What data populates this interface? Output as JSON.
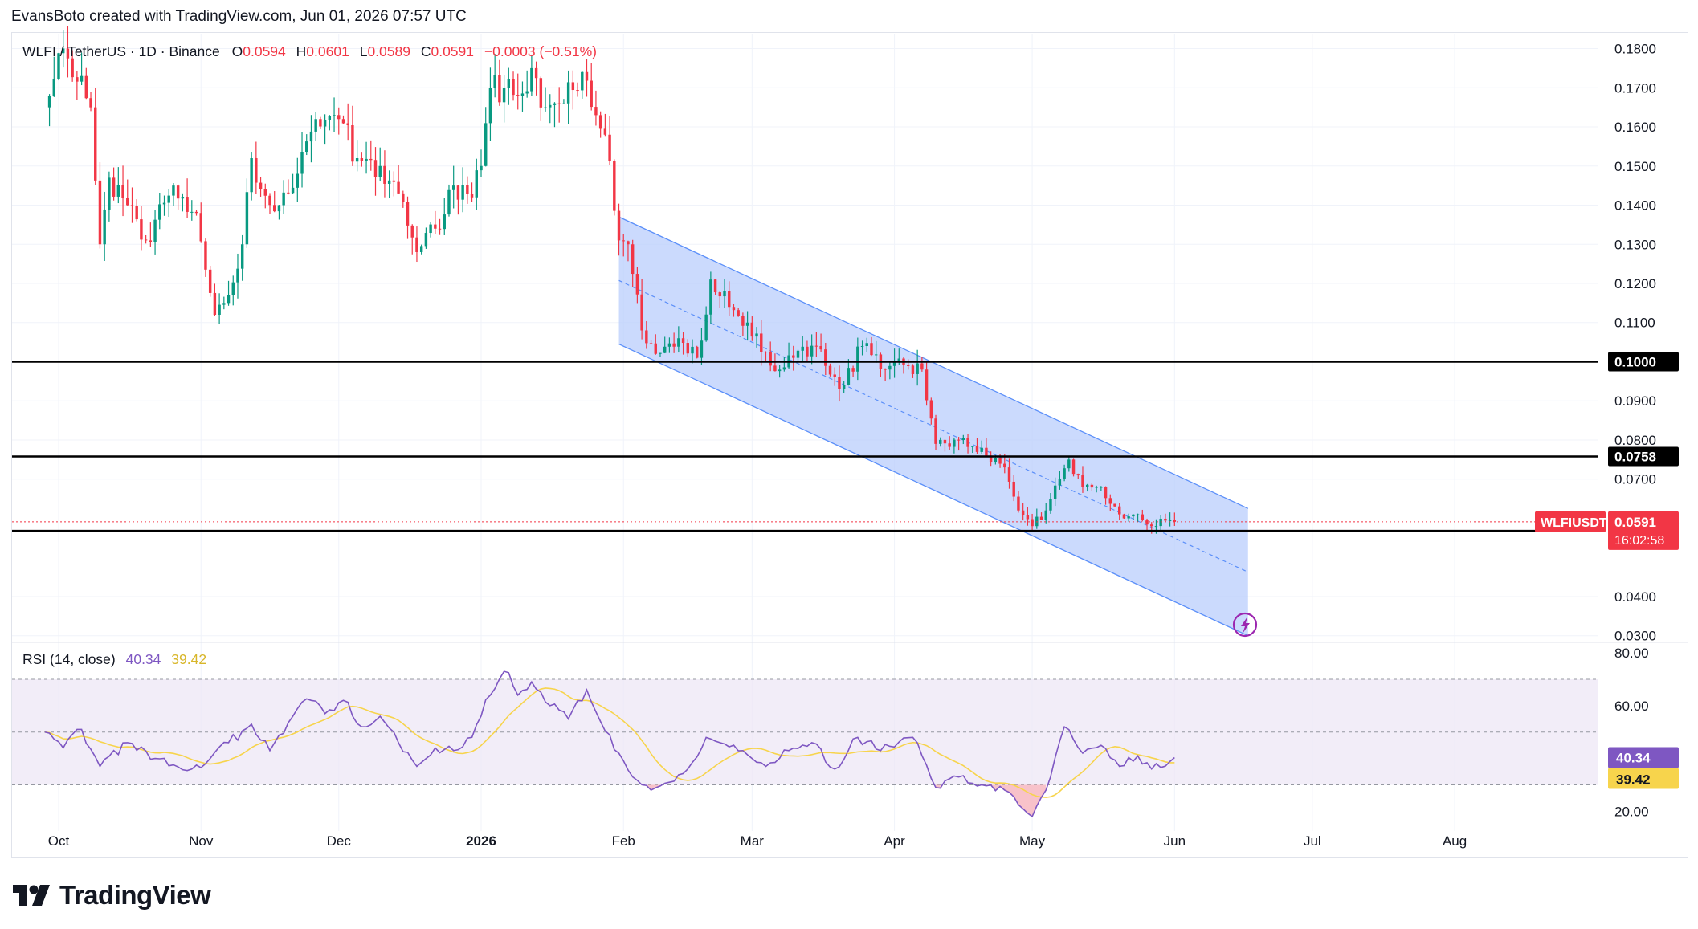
{
  "credit": "EvansBoto created with TradingView.com, Jun 01, 2026 07:57 UTC",
  "brand": "TradingView",
  "colors": {
    "up": "#089981",
    "down": "#f23645",
    "channel_fill": "#b9cdfc",
    "channel_line": "#5b8ff9",
    "rsi_line": "#7e57c2",
    "rsi_ma": "#f7d44c",
    "rsi_band": "#ede7f6",
    "level": "#000000"
  },
  "chart_data": [
    {
      "type": "candlestick",
      "legend": {
        "symbol": "WLFI / TetherUS · 1D · Binance",
        "o_label": "O",
        "o": "0.0594",
        "h_label": "H",
        "h": "0.0601",
        "l_label": "L",
        "l": "0.0589",
        "c_label": "C",
        "c": "0.0591",
        "change": "−0.0003 (−0.51%)"
      },
      "y_ticks": [
        "0.1800",
        "0.1700",
        "0.1600",
        "0.1500",
        "0.1400",
        "0.1300",
        "0.1200",
        "0.1100",
        "0.0900",
        "0.0800",
        "0.0700",
        "0.0400",
        "0.0300"
      ],
      "ylim": [
        0.0283,
        0.1838
      ],
      "x_labels": [
        {
          "label": "Oct",
          "date": "2025-10-01"
        },
        {
          "label": "Nov",
          "date": "2025-11-01"
        },
        {
          "label": "Dec",
          "date": "2025-12-01"
        },
        {
          "label": "2026",
          "date": "2026-01-01"
        },
        {
          "label": "Feb",
          "date": "2026-02-01"
        },
        {
          "label": "Mar",
          "date": "2026-03-01"
        },
        {
          "label": "Apr",
          "date": "2026-04-01"
        },
        {
          "label": "May",
          "date": "2026-05-01"
        },
        {
          "label": "Jun",
          "date": "2026-06-01"
        },
        {
          "label": "Jul",
          "date": "2026-07-01"
        },
        {
          "label": "Aug",
          "date": "2026-08-01"
        }
      ],
      "horizontal_levels": [
        {
          "value": 0.1,
          "label": "0.1000"
        },
        {
          "value": 0.0758,
          "label": "0.0758"
        },
        {
          "value": 0.0568,
          "label": "0.0568"
        }
      ],
      "last_price": {
        "symbol": "WLFIUSDT",
        "value": 0.0591,
        "label": "0.0591",
        "countdown": "16:02:58"
      },
      "channel": {
        "upper_start": {
          "date": "2026-01-31",
          "price": 0.137
        },
        "upper_end": {
          "date": "2026-06-17",
          "price": 0.0625
        },
        "lower_start": {
          "date": "2026-01-31",
          "price": 0.1045
        },
        "lower_end": {
          "date": "2026-06-17",
          "price": 0.03
        }
      },
      "closes_anchor": [
        {
          "date": "2025-09-28",
          "close": 0.165
        },
        {
          "date": "2025-10-02",
          "close": 0.18
        },
        {
          "date": "2025-10-08",
          "close": 0.165
        },
        {
          "date": "2025-10-10",
          "close": 0.13
        },
        {
          "date": "2025-10-12",
          "close": 0.147
        },
        {
          "date": "2025-10-16",
          "close": 0.14
        },
        {
          "date": "2025-10-20",
          "close": 0.131
        },
        {
          "date": "2025-10-26",
          "close": 0.145
        },
        {
          "date": "2025-10-31",
          "close": 0.138
        },
        {
          "date": "2025-11-04",
          "close": 0.112
        },
        {
          "date": "2025-11-06",
          "close": 0.115
        },
        {
          "date": "2025-11-10",
          "close": 0.13
        },
        {
          "date": "2025-11-12",
          "close": 0.152
        },
        {
          "date": "2025-11-14",
          "close": 0.144
        },
        {
          "date": "2025-11-18",
          "close": 0.14
        },
        {
          "date": "2025-11-22",
          "close": 0.148
        },
        {
          "date": "2025-11-26",
          "close": 0.162
        },
        {
          "date": "2025-12-01",
          "close": 0.162
        },
        {
          "date": "2025-12-05",
          "close": 0.152
        },
        {
          "date": "2025-12-10",
          "close": 0.15
        },
        {
          "date": "2025-12-14",
          "close": 0.143
        },
        {
          "date": "2025-12-18",
          "close": 0.128
        },
        {
          "date": "2025-12-22",
          "close": 0.134
        },
        {
          "date": "2025-12-26",
          "close": 0.145
        },
        {
          "date": "2025-12-30",
          "close": 0.142
        },
        {
          "date": "2026-01-01",
          "close": 0.15
        },
        {
          "date": "2026-01-03",
          "close": 0.17
        },
        {
          "date": "2026-01-06",
          "close": 0.17
        },
        {
          "date": "2026-01-09",
          "close": 0.168
        },
        {
          "date": "2026-01-12",
          "close": 0.175
        },
        {
          "date": "2026-01-15",
          "close": 0.165
        },
        {
          "date": "2026-01-19",
          "close": 0.166
        },
        {
          "date": "2026-01-23",
          "close": 0.174
        },
        {
          "date": "2026-01-26",
          "close": 0.163
        },
        {
          "date": "2026-01-28",
          "close": 0.158
        },
        {
          "date": "2026-01-31",
          "close": 0.131
        },
        {
          "date": "2026-02-02",
          "close": 0.13
        },
        {
          "date": "2026-02-05",
          "close": 0.108
        },
        {
          "date": "2026-02-08",
          "close": 0.102
        },
        {
          "date": "2026-02-13",
          "close": 0.106
        },
        {
          "date": "2026-02-17",
          "close": 0.101
        },
        {
          "date": "2026-02-20",
          "close": 0.121
        },
        {
          "date": "2026-02-24",
          "close": 0.114
        },
        {
          "date": "2026-02-28",
          "close": 0.11
        },
        {
          "date": "2026-03-05",
          "close": 0.099
        },
        {
          "date": "2026-03-10",
          "close": 0.101
        },
        {
          "date": "2026-03-15",
          "close": 0.104
        },
        {
          "date": "2026-03-20",
          "close": 0.093
        },
        {
          "date": "2026-03-25",
          "close": 0.104
        },
        {
          "date": "2026-03-30",
          "close": 0.098
        },
        {
          "date": "2026-04-04",
          "close": 0.099
        },
        {
          "date": "2026-04-07",
          "close": 0.098
        },
        {
          "date": "2026-04-10",
          "close": 0.079
        },
        {
          "date": "2026-04-15",
          "close": 0.08
        },
        {
          "date": "2026-04-20",
          "close": 0.078
        },
        {
          "date": "2026-04-25",
          "close": 0.073
        },
        {
          "date": "2026-04-28",
          "close": 0.062
        },
        {
          "date": "2026-05-01",
          "close": 0.058
        },
        {
          "date": "2026-05-04",
          "close": 0.062
        },
        {
          "date": "2026-05-07",
          "close": 0.07
        },
        {
          "date": "2026-05-09",
          "close": 0.075
        },
        {
          "date": "2026-05-12",
          "close": 0.068
        },
        {
          "date": "2026-05-16",
          "close": 0.068
        },
        {
          "date": "2026-05-20",
          "close": 0.061
        },
        {
          "date": "2026-05-24",
          "close": 0.061
        },
        {
          "date": "2026-05-27",
          "close": 0.058
        },
        {
          "date": "2026-05-30",
          "close": 0.0594
        },
        {
          "date": "2026-06-01",
          "close": 0.0591
        }
      ]
    },
    {
      "type": "line",
      "legend": {
        "name": "RSI (14, close)",
        "rsi": "40.34",
        "ma": "39.42"
      },
      "y_ticks": [
        "80.00",
        "60.00",
        "20.00"
      ],
      "ylim": [
        12.5,
        84
      ],
      "bands": {
        "upper": 70,
        "middle": 50,
        "lower": 30
      },
      "last_rsi": {
        "value": 40.34,
        "label": "40.34"
      },
      "last_ma": {
        "value": 39.42,
        "label": "39.42"
      },
      "rsi_anchor": [
        {
          "date": "2025-09-28",
          "rsi": 50
        },
        {
          "date": "2025-10-02",
          "rsi": 44
        },
        {
          "date": "2025-10-06",
          "rsi": 51
        },
        {
          "date": "2025-10-10",
          "rsi": 37
        },
        {
          "date": "2025-10-16",
          "rsi": 46
        },
        {
          "date": "2025-10-22",
          "rsi": 40
        },
        {
          "date": "2025-10-30",
          "rsi": 36
        },
        {
          "date": "2025-11-03",
          "rsi": 40
        },
        {
          "date": "2025-11-07",
          "rsi": 46
        },
        {
          "date": "2025-11-12",
          "rsi": 53
        },
        {
          "date": "2025-11-16",
          "rsi": 43
        },
        {
          "date": "2025-11-21",
          "rsi": 56
        },
        {
          "date": "2025-11-25",
          "rsi": 62
        },
        {
          "date": "2025-11-28",
          "rsi": 57
        },
        {
          "date": "2025-12-02",
          "rsi": 62
        },
        {
          "date": "2025-12-06",
          "rsi": 52
        },
        {
          "date": "2025-12-10",
          "rsi": 56
        },
        {
          "date": "2025-12-14",
          "rsi": 46
        },
        {
          "date": "2025-12-18",
          "rsi": 37
        },
        {
          "date": "2025-12-22",
          "rsi": 44
        },
        {
          "date": "2025-12-26",
          "rsi": 43
        },
        {
          "date": "2025-12-30",
          "rsi": 48
        },
        {
          "date": "2026-01-03",
          "rsi": 64
        },
        {
          "date": "2026-01-06",
          "rsi": 73
        },
        {
          "date": "2026-01-09",
          "rsi": 64
        },
        {
          "date": "2026-01-12",
          "rsi": 69
        },
        {
          "date": "2026-01-16",
          "rsi": 60
        },
        {
          "date": "2026-01-20",
          "rsi": 55
        },
        {
          "date": "2026-01-24",
          "rsi": 66
        },
        {
          "date": "2026-01-27",
          "rsi": 54
        },
        {
          "date": "2026-01-31",
          "rsi": 42
        },
        {
          "date": "2026-02-03",
          "rsi": 33
        },
        {
          "date": "2026-02-07",
          "rsi": 28
        },
        {
          "date": "2026-02-11",
          "rsi": 31
        },
        {
          "date": "2026-02-15",
          "rsi": 36
        },
        {
          "date": "2026-02-19",
          "rsi": 48
        },
        {
          "date": "2026-02-22",
          "rsi": 46
        },
        {
          "date": "2026-02-27",
          "rsi": 43
        },
        {
          "date": "2026-03-04",
          "rsi": 37
        },
        {
          "date": "2026-03-09",
          "rsi": 43
        },
        {
          "date": "2026-03-14",
          "rsi": 46
        },
        {
          "date": "2026-03-19",
          "rsi": 36
        },
        {
          "date": "2026-03-24",
          "rsi": 48
        },
        {
          "date": "2026-03-29",
          "rsi": 43
        },
        {
          "date": "2026-04-05",
          "rsi": 48
        },
        {
          "date": "2026-04-10",
          "rsi": 29
        },
        {
          "date": "2026-04-15",
          "rsi": 33
        },
        {
          "date": "2026-04-20",
          "rsi": 30
        },
        {
          "date": "2026-04-25",
          "rsi": 28
        },
        {
          "date": "2026-05-01",
          "rsi": 18
        },
        {
          "date": "2026-05-04",
          "rsi": 28
        },
        {
          "date": "2026-05-08",
          "rsi": 52
        },
        {
          "date": "2026-05-12",
          "rsi": 42
        },
        {
          "date": "2026-05-16",
          "rsi": 45
        },
        {
          "date": "2026-05-20",
          "rsi": 37
        },
        {
          "date": "2026-05-24",
          "rsi": 41
        },
        {
          "date": "2026-05-27",
          "rsi": 36
        },
        {
          "date": "2026-06-01",
          "rsi": 40.34
        }
      ]
    }
  ]
}
